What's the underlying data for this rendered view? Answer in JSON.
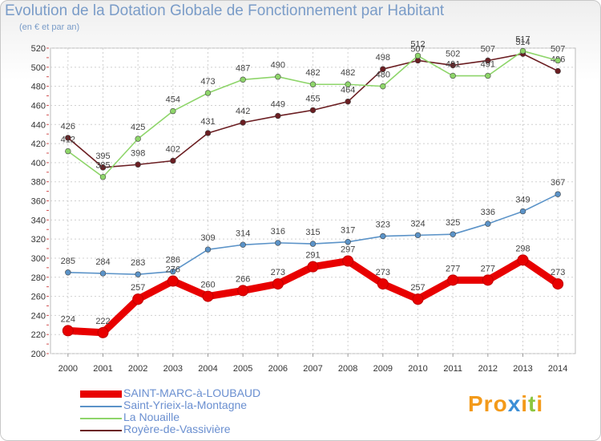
{
  "title": "Evolution de la Dotation Globale de Fonctionnement par Habitant",
  "subtitle": "(en € et par an)",
  "brand": "Proxiti",
  "chart_data": {
    "type": "line",
    "title": "Evolution de la Dotation Globale de Fonctionnement par Habitant",
    "ylabel": "(en € et par an)",
    "xlabel": "",
    "x": [
      "2000",
      "2001",
      "2002",
      "2003",
      "2004",
      "2005",
      "2006",
      "2007",
      "2008",
      "2009",
      "2010",
      "2011",
      "2012",
      "2013",
      "2014"
    ],
    "ylim": [
      200,
      520
    ],
    "yticks": [
      200,
      220,
      240,
      260,
      280,
      300,
      320,
      340,
      360,
      380,
      400,
      420,
      440,
      460,
      480,
      500,
      520
    ],
    "grid": true,
    "legend": "bottom-left",
    "series": [
      {
        "name": "SAINT-MARC-à-LOUBAUD",
        "color": "#e80000",
        "values": [
          224,
          222,
          257,
          276,
          260,
          266,
          273,
          291,
          297,
          273,
          257,
          277,
          277,
          298,
          273
        ]
      },
      {
        "name": "Saint-Yrieix-la-Montagne",
        "color": "#5b93c8",
        "values": [
          285,
          284,
          283,
          286,
          309,
          314,
          316,
          315,
          317,
          323,
          324,
          325,
          336,
          349,
          367
        ]
      },
      {
        "name": "La Nouaille",
        "color": "#8ed56a",
        "values": [
          412,
          385,
          425,
          454,
          473,
          487,
          490,
          482,
          482,
          480,
          512,
          491,
          491,
          517,
          507
        ]
      },
      {
        "name": "Royère-de-Vassivière",
        "color": "#6b1e22",
        "values": [
          426,
          395,
          398,
          402,
          431,
          442,
          449,
          455,
          464,
          498,
          507,
          502,
          507,
          514,
          496
        ]
      }
    ]
  }
}
